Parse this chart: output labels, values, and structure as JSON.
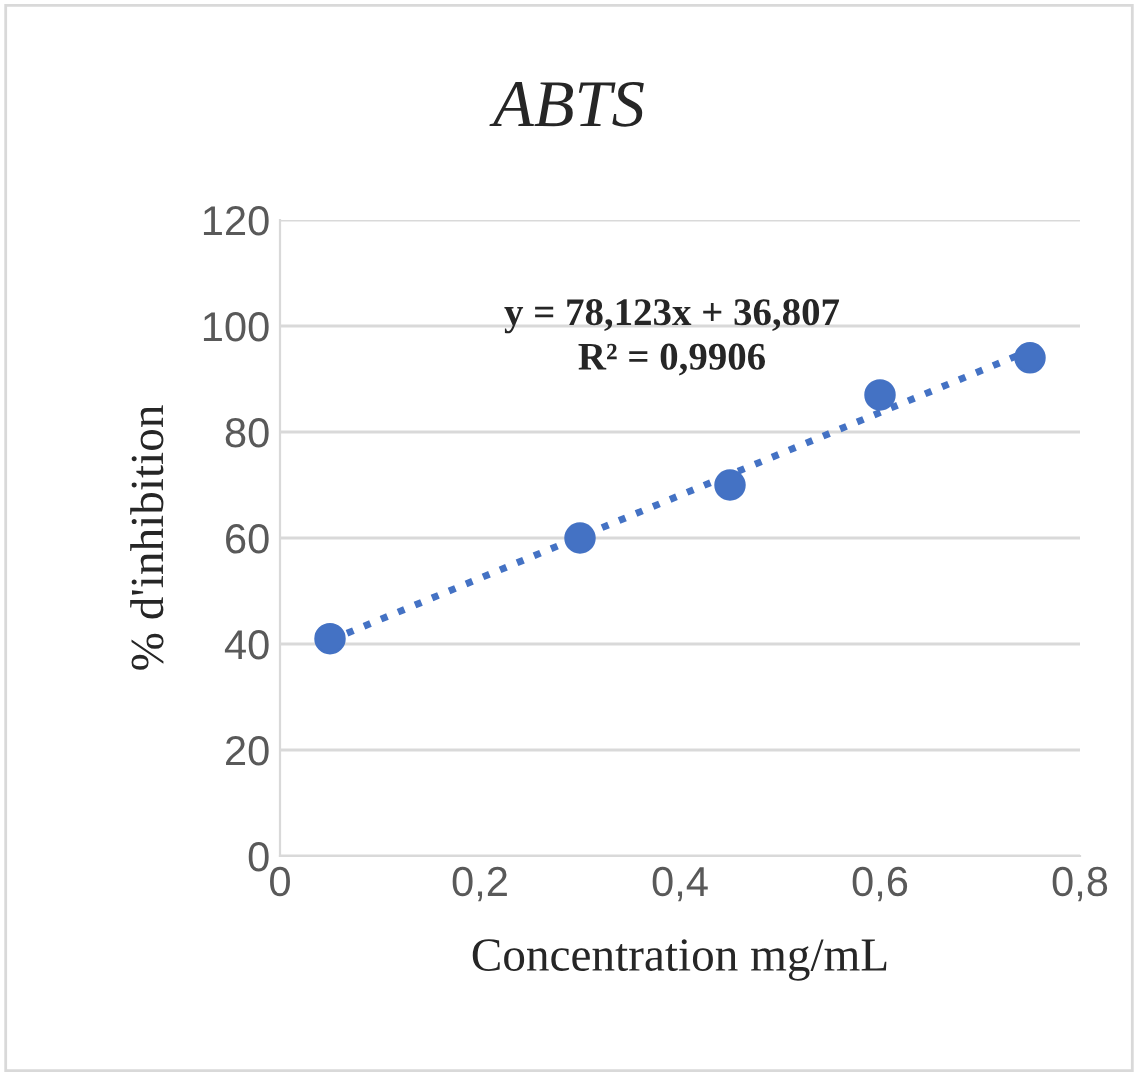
{
  "chart_data": {
    "type": "scatter",
    "title": "ABTS",
    "xlabel": "Concentration mg/mL",
    "ylabel": "% d'inhibition",
    "series": [
      {
        "type": "scatter",
        "color": "#4472c4",
        "marker": "circle",
        "x": [
          0.05,
          0.3,
          0.45,
          0.6,
          0.75
        ],
        "values": [
          41,
          60,
          70,
          87,
          94
        ]
      },
      {
        "type": "line",
        "color": "#4472c4",
        "marker": "none",
        "line_style": "dotted",
        "x": [
          0.05,
          0.75
        ],
        "values": [
          40.7,
          95.4
        ]
      }
    ],
    "annotations": [
      "y = 78,123x + 36,807",
      "R² = 0,9906"
    ],
    "xlim": [
      0,
      0.8
    ],
    "xticks": [
      0,
      {
        "value": 0.2,
        "label": "0,2"
      },
      {
        "value": 0.4,
        "label": "0,4"
      },
      {
        "value": 0.6,
        "label": "0,6"
      },
      {
        "value": 0.8,
        "label": "0,8"
      }
    ],
    "ylim": [
      0,
      120
    ],
    "yticks": [
      0,
      20,
      40,
      60,
      80,
      100,
      120
    ],
    "grid": "y",
    "legend": false
  }
}
